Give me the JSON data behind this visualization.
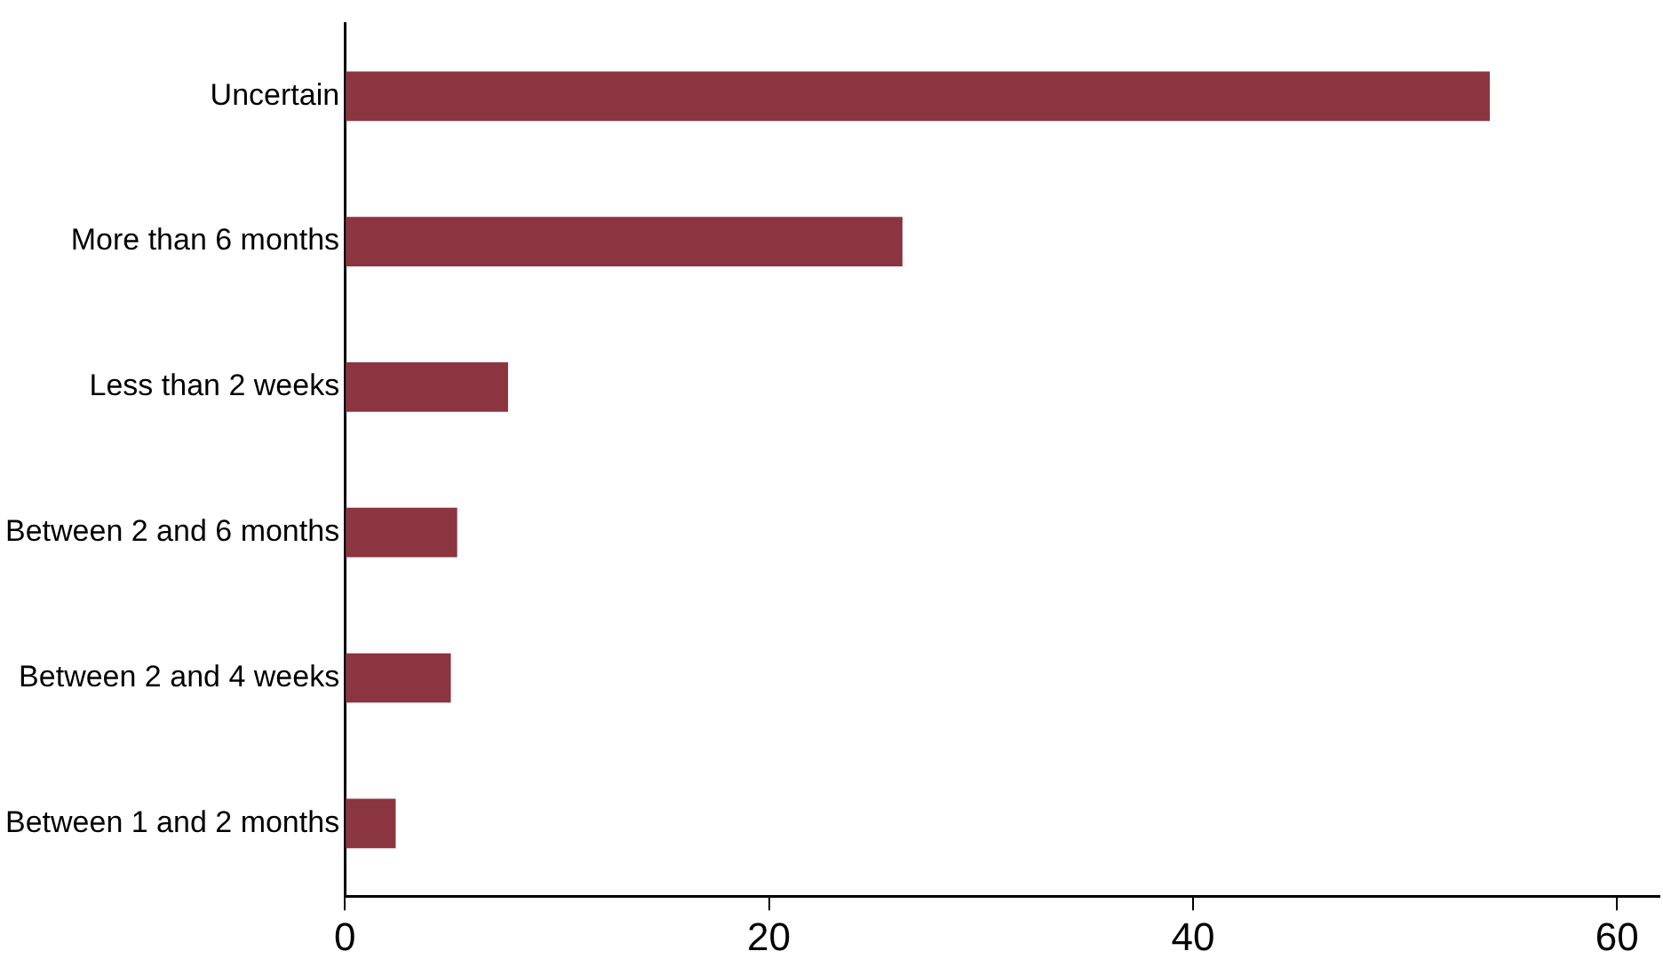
{
  "chart_data": {
    "type": "bar",
    "orientation": "horizontal",
    "categories": [
      "Uncertain",
      "More than 6 months",
      "Less than 2 weeks",
      "Between 2 and 6 months",
      "Between 2 and 4 weeks",
      "Between 1 and 2 months"
    ],
    "values": [
      54.0,
      26.3,
      7.7,
      5.3,
      5.0,
      2.4
    ],
    "color": "#8b3540",
    "xlim": [
      0,
      62
    ],
    "xticks": [
      0,
      20,
      40,
      60
    ],
    "grid": false,
    "legend": false
  }
}
